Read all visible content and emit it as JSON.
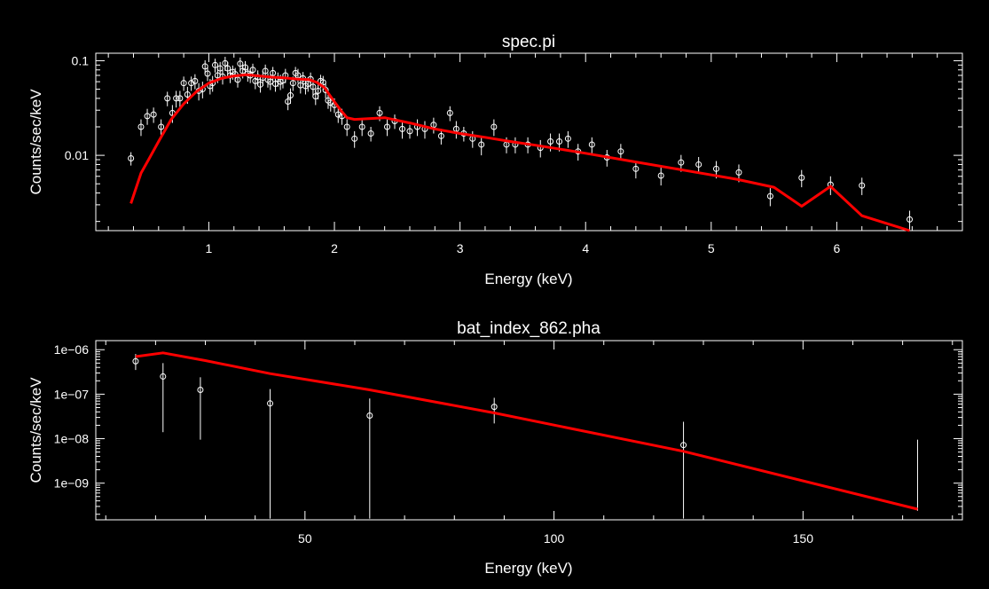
{
  "colors": {
    "background": "#000000",
    "frame": "#ffffff",
    "model": "#ff0000",
    "data": "#ffffff"
  },
  "chart_data": [
    {
      "type": "scatter",
      "title": "spec.pi",
      "xlabel": "Energy (keV)",
      "ylabel": "Counts/sec/keV",
      "yscale": "log",
      "xlim": [
        0.1,
        7.0
      ],
      "ylim": [
        0.0016,
        0.12
      ],
      "xticks": [
        1,
        2,
        3,
        4,
        5,
        6
      ],
      "xtick_labels": [
        "1",
        "2",
        "3",
        "4",
        "5",
        "6"
      ],
      "yticks": [
        0.01,
        0.1
      ],
      "ytick_labels": [
        "0.01",
        "0.1"
      ],
      "series": [
        {
          "kind": "data",
          "x": [
            0.38,
            0.46,
            0.51,
            0.56,
            0.62,
            0.67,
            0.71,
            0.74,
            0.77,
            0.8,
            0.83,
            0.86,
            0.89,
            0.92,
            0.95,
            0.97,
            0.99,
            1.01,
            1.03,
            1.05,
            1.07,
            1.09,
            1.11,
            1.13,
            1.15,
            1.17,
            1.19,
            1.21,
            1.23,
            1.25,
            1.27,
            1.29,
            1.31,
            1.33,
            1.35,
            1.37,
            1.39,
            1.41,
            1.43,
            1.45,
            1.47,
            1.49,
            1.51,
            1.53,
            1.55,
            1.57,
            1.59,
            1.61,
            1.63,
            1.65,
            1.67,
            1.69,
            1.71,
            1.73,
            1.75,
            1.77,
            1.79,
            1.81,
            1.83,
            1.85,
            1.87,
            1.89,
            1.91,
            1.93,
            1.95,
            1.97,
            2.0,
            2.03,
            2.06,
            2.1,
            2.16,
            2.22,
            2.29,
            2.36,
            2.42,
            2.48,
            2.54,
            2.6,
            2.66,
            2.72,
            2.79,
            2.85,
            2.92,
            2.97,
            3.03,
            3.1,
            3.17,
            3.27,
            3.37,
            3.44,
            3.54,
            3.64,
            3.72,
            3.79,
            3.86,
            3.94,
            4.05,
            4.17,
            4.28,
            4.4,
            4.6,
            4.76,
            4.9,
            5.04,
            5.22,
            5.47,
            5.72,
            5.95,
            6.2,
            6.58
          ],
          "y": [
            0.0093,
            0.02,
            0.026,
            0.027,
            0.02,
            0.04,
            0.028,
            0.04,
            0.04,
            0.058,
            0.044,
            0.058,
            0.061,
            0.048,
            0.05,
            0.087,
            0.073,
            0.054,
            0.058,
            0.09,
            0.07,
            0.083,
            0.068,
            0.094,
            0.083,
            0.07,
            0.076,
            0.072,
            0.063,
            0.093,
            0.078,
            0.085,
            0.073,
            0.07,
            0.08,
            0.061,
            0.067,
            0.056,
            0.066,
            0.078,
            0.063,
            0.06,
            0.074,
            0.057,
            0.064,
            0.06,
            0.062,
            0.07,
            0.037,
            0.043,
            0.058,
            0.074,
            0.07,
            0.055,
            0.065,
            0.054,
            0.057,
            0.064,
            0.053,
            0.042,
            0.048,
            0.061,
            0.059,
            0.049,
            0.038,
            0.036,
            0.034,
            0.027,
            0.026,
            0.02,
            0.015,
            0.02,
            0.017,
            0.028,
            0.02,
            0.023,
            0.019,
            0.018,
            0.02,
            0.019,
            0.021,
            0.016,
            0.028,
            0.019,
            0.017,
            0.015,
            0.013,
            0.02,
            0.013,
            0.013,
            0.013,
            0.012,
            0.014,
            0.014,
            0.015,
            0.011,
            0.013,
            0.0095,
            0.011,
            0.0072,
            0.0061,
            0.0084,
            0.008,
            0.0072,
            0.0066,
            0.0037,
            0.0058,
            0.0049,
            0.0048,
            0.0021
          ],
          "err": [
            0.0015,
            0.004,
            0.005,
            0.005,
            0.004,
            0.007,
            0.006,
            0.008,
            0.008,
            0.01,
            0.009,
            0.01,
            0.011,
            0.01,
            0.01,
            0.014,
            0.012,
            0.01,
            0.011,
            0.015,
            0.012,
            0.014,
            0.012,
            0.016,
            0.014,
            0.012,
            0.013,
            0.012,
            0.011,
            0.015,
            0.013,
            0.014,
            0.013,
            0.012,
            0.013,
            0.011,
            0.012,
            0.01,
            0.012,
            0.013,
            0.011,
            0.011,
            0.012,
            0.01,
            0.011,
            0.011,
            0.011,
            0.012,
            0.007,
            0.008,
            0.01,
            0.012,
            0.012,
            0.01,
            0.011,
            0.01,
            0.01,
            0.011,
            0.01,
            0.008,
            0.009,
            0.01,
            0.01,
            0.009,
            0.007,
            0.007,
            0.006,
            0.005,
            0.005,
            0.004,
            0.003,
            0.004,
            0.003,
            0.005,
            0.004,
            0.004,
            0.004,
            0.003,
            0.004,
            0.004,
            0.004,
            0.003,
            0.005,
            0.004,
            0.003,
            0.003,
            0.003,
            0.004,
            0.0025,
            0.0025,
            0.0025,
            0.0025,
            0.003,
            0.003,
            0.003,
            0.0022,
            0.0025,
            0.0019,
            0.0022,
            0.0015,
            0.0013,
            0.0017,
            0.0016,
            0.0015,
            0.0014,
            0.0008,
            0.0012,
            0.0011,
            0.001,
            0.0005
          ]
        },
        {
          "kind": "model",
          "x": [
            0.38,
            0.46,
            0.52,
            0.6,
            0.7,
            0.8,
            0.9,
            1.0,
            1.1,
            1.2,
            1.3,
            1.4,
            1.5,
            1.6,
            1.7,
            1.8,
            1.86,
            1.92,
            1.98,
            2.05,
            2.1,
            2.16,
            2.4,
            2.6,
            2.8,
            3.0,
            3.2,
            3.4,
            3.6,
            3.8,
            4.0,
            4.4,
            4.8,
            5.2,
            5.5,
            5.72,
            5.95,
            6.2,
            6.58
          ],
          "y": [
            0.0031,
            0.0065,
            0.009,
            0.014,
            0.024,
            0.035,
            0.047,
            0.058,
            0.065,
            0.069,
            0.071,
            0.069,
            0.067,
            0.066,
            0.064,
            0.063,
            0.059,
            0.052,
            0.04,
            0.03,
            0.025,
            0.024,
            0.025,
            0.022,
            0.019,
            0.017,
            0.0155,
            0.014,
            0.0128,
            0.0116,
            0.0105,
            0.0085,
            0.0069,
            0.0056,
            0.0046,
            0.0029,
            0.0047,
            0.0023,
            0.0016
          ]
        }
      ]
    },
    {
      "type": "scatter",
      "title": "bat_index_862.pha",
      "xlabel": "Energy (keV)",
      "ylabel": "Counts/sec/keV",
      "yscale": "log",
      "xlim": [
        8,
        182
      ],
      "ylim": [
        1.5e-10,
        1.6e-06
      ],
      "xticks": [
        50,
        100,
        150
      ],
      "xtick_labels": [
        "50",
        "100",
        "150"
      ],
      "yticks": [
        1e-09,
        1e-08,
        1e-07,
        1e-06
      ],
      "ytick_labels": [
        "1e−09",
        "1e−08",
        "1e−07",
        "1e−06"
      ],
      "series": [
        {
          "kind": "data",
          "x": [
            16,
            21.5,
            29,
            43,
            63,
            88,
            126,
            173
          ],
          "y": [
            5.5e-07,
            2.5e-07,
            1.25e-07,
            6.2e-08,
            3.3e-08,
            5.2e-08,
            7.2e-09,
            null
          ],
          "y_low": [
            3.5e-07,
            1.4e-08,
            9.5e-09,
            1.6e-10,
            1.6e-10,
            2.2e-08,
            1.6e-10,
            2.4e-10
          ],
          "y_high": [
            8e-07,
            5e-07,
            2.4e-07,
            1.3e-07,
            8e-08,
            8.3e-08,
            2.4e-08,
            9.5e-09
          ]
        },
        {
          "kind": "model",
          "x": [
            16,
            21.5,
            30,
            43,
            63,
            88,
            126,
            173
          ],
          "y": [
            7e-07,
            8.5e-07,
            5.7e-07,
            2.9e-07,
            1.25e-07,
            3.8e-08,
            5.2e-09,
            2.6e-10
          ]
        }
      ]
    }
  ]
}
